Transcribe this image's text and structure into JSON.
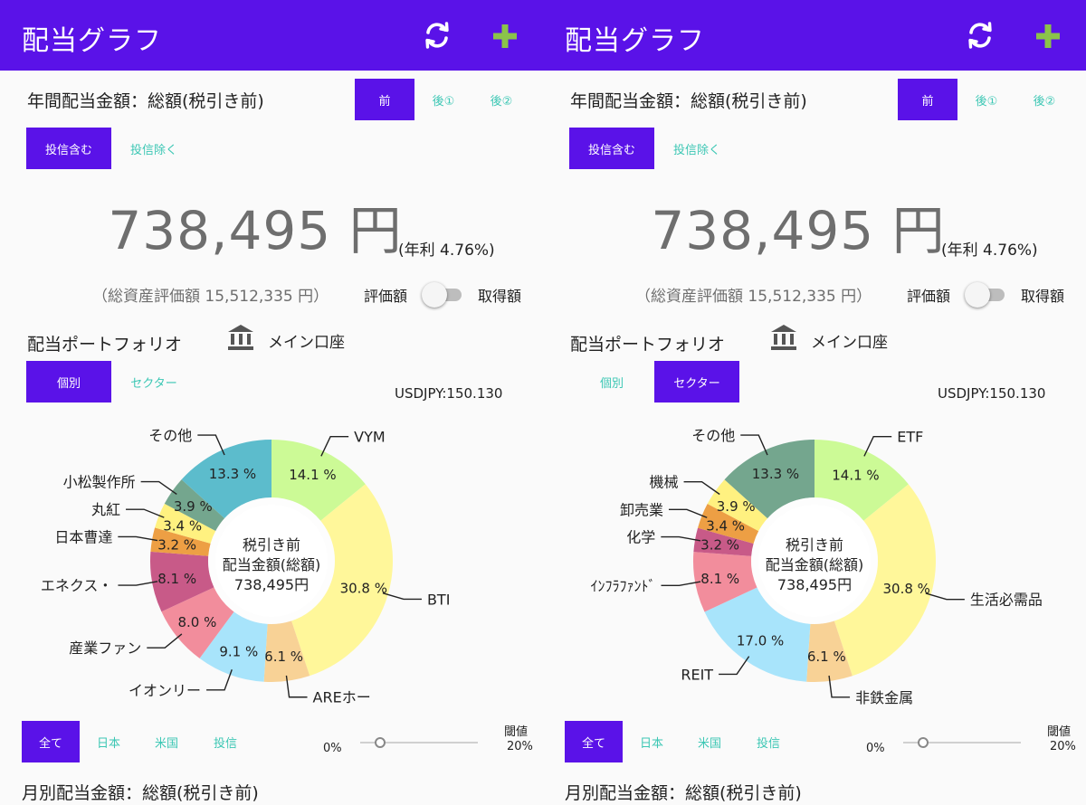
{
  "screens": [
    {
      "app_title": "配当グラフ",
      "annual_title": "年間配当金額：総額(税引き前)",
      "tax_tabs": [
        "前",
        "後①",
        "後②"
      ],
      "tax_tab_selected": 0,
      "fund_tabs": [
        "投信含む",
        "投信除く"
      ],
      "fund_tab_selected": 0,
      "total_amount": "738,495 円",
      "yield_text": "(年利 4.76%)",
      "assets_text": "（総資産評価額 15,512,335 円）",
      "toggle_left": "評価額",
      "toggle_right": "取得額",
      "portfolio_title": "配当ポートフォリオ",
      "account_name": "メイン口座",
      "view_tabs": [
        "個別",
        "セクター"
      ],
      "view_tab_selected": 0,
      "fx_rate": "USDJPY:150.130",
      "region_tabs": [
        "全て",
        "日本",
        "米国",
        "投信"
      ],
      "region_tab_selected": 0,
      "threshold_title": "閾値",
      "threshold_value": "20%",
      "threshold_min": "0%",
      "threshold_position": 0.12,
      "monthly_title": "月別配当金額：総額(税引き前)",
      "chart_data": {
        "type": "pie",
        "center_text": [
          "税引き前",
          "配当金額(総額)",
          "738,495円"
        ],
        "slices": [
          {
            "name": "VYM",
            "label": "14.1 %",
            "value": 14.1,
            "color": "#ccfa96"
          },
          {
            "name": "BTI",
            "label": "30.8 %",
            "value": 30.8,
            "color": "#fff79a"
          },
          {
            "name": "AREホー",
            "label": "6.1 %",
            "value": 6.1,
            "color": "#f8d296"
          },
          {
            "name": "イオンリー",
            "label": "9.1 %",
            "value": 9.1,
            "color": "#a8e4fb"
          },
          {
            "name": "産業ファン",
            "label": "8.0 %",
            "value": 8.0,
            "color": "#f28d9c"
          },
          {
            "name": "エネクス・",
            "label": "8.1 %",
            "value": 8.1,
            "color": "#c85a88"
          },
          {
            "name": "日本曹達",
            "label": "3.2 %",
            "value": 3.2,
            "color": "#ed9f44"
          },
          {
            "name": "丸紅",
            "label": "3.4 %",
            "value": 3.4,
            "color": "#fff180"
          },
          {
            "name": "小松製作所",
            "label": "3.9 %",
            "value": 3.9,
            "color": "#74a68e"
          },
          {
            "name": "その他",
            "label": "13.3 %",
            "value": 13.3,
            "color": "#5cbccc"
          }
        ]
      }
    },
    {
      "app_title": "配当グラフ",
      "annual_title": "年間配当金額：総額(税引き前)",
      "tax_tabs": [
        "前",
        "後①",
        "後②"
      ],
      "tax_tab_selected": 0,
      "fund_tabs": [
        "投信含む",
        "投信除く"
      ],
      "fund_tab_selected": 0,
      "total_amount": "738,495 円",
      "yield_text": "(年利 4.76%)",
      "assets_text": "（総資産評価額 15,512,335 円）",
      "toggle_left": "評価額",
      "toggle_right": "取得額",
      "portfolio_title": "配当ポートフォリオ",
      "account_name": "メイン口座",
      "view_tabs": [
        "個別",
        "セクター"
      ],
      "view_tab_selected": 1,
      "fx_rate": "USDJPY:150.130",
      "region_tabs": [
        "全て",
        "日本",
        "米国",
        "投信"
      ],
      "region_tab_selected": 0,
      "threshold_title": "閾値",
      "threshold_value": "20%",
      "threshold_min": "0%",
      "threshold_position": 0.12,
      "monthly_title": "月別配当金額：総額(税引き前)",
      "chart_data": {
        "type": "pie",
        "center_text": [
          "税引き前",
          "配当金額(総額)",
          "738,495円"
        ],
        "slices": [
          {
            "name": "ETF",
            "label": "14.1 %",
            "value": 14.1,
            "color": "#ccfa96"
          },
          {
            "name": "生活必需品",
            "label": "30.8 %",
            "value": 30.8,
            "color": "#fff79a"
          },
          {
            "name": "非鉄金属",
            "label": "6.1 %",
            "value": 6.1,
            "color": "#f8d296"
          },
          {
            "name": "REIT",
            "label": "17.0 %",
            "value": 17.0,
            "color": "#a8e4fb"
          },
          {
            "name": "ｲﾝﾌﾗﾌｧﾝﾄﾞ",
            "label": "8.1 %",
            "value": 8.1,
            "color": "#f28d9c"
          },
          {
            "name": "化学",
            "label": "3.2 %",
            "value": 3.2,
            "color": "#c85a88"
          },
          {
            "name": "卸売業",
            "label": "3.4 %",
            "value": 3.4,
            "color": "#ed9f44"
          },
          {
            "name": "機械",
            "label": "3.9 %",
            "value": 3.9,
            "color": "#fff180"
          },
          {
            "name": "その他",
            "label": "13.3 %",
            "value": 13.3,
            "color": "#74a68e"
          }
        ]
      }
    }
  ],
  "colors": {
    "primary": "#5a12e8",
    "accent_text": "#3cc7b4",
    "add_icon": "#8bc34a",
    "amount_text": "#6e6e6e"
  },
  "icons": {
    "refresh": "refresh-icon",
    "add": "add-icon",
    "bank": "bank-icon"
  }
}
